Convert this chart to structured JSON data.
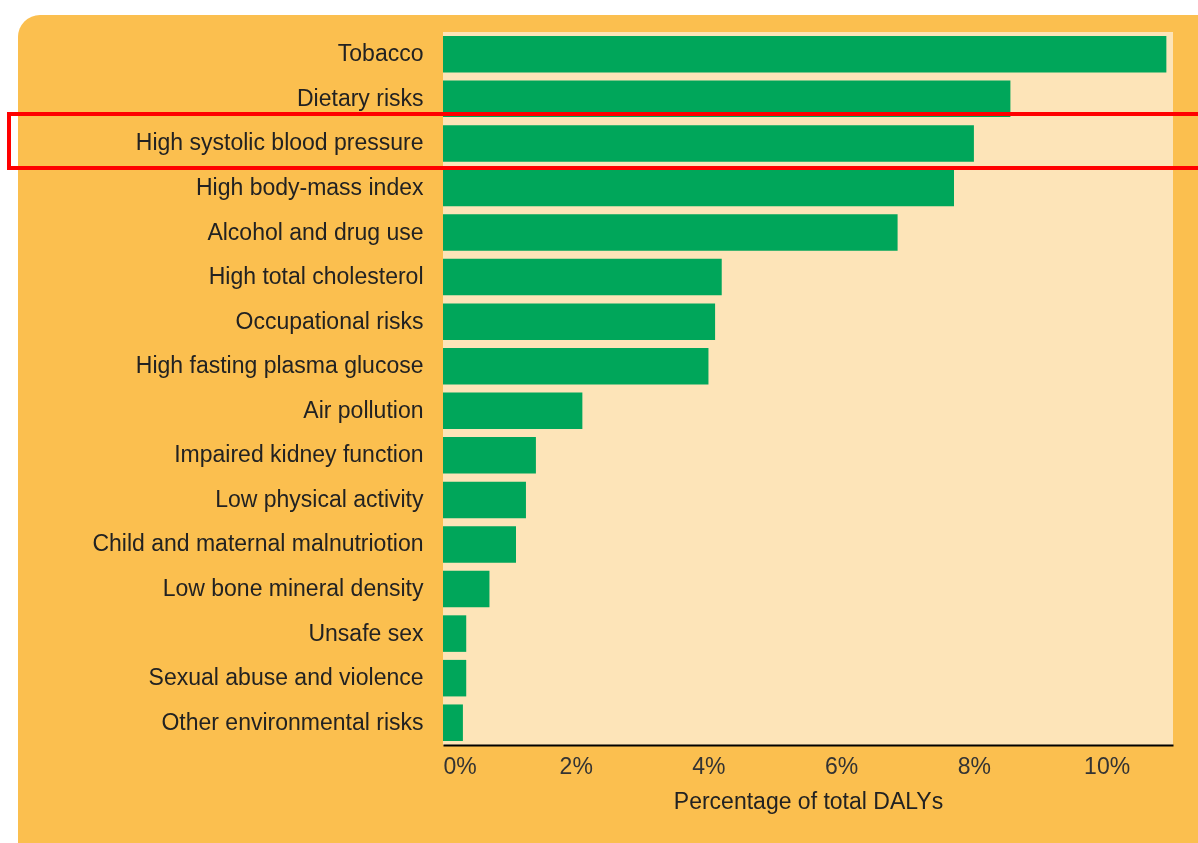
{
  "chart_data": {
    "type": "bar",
    "orientation": "horizontal",
    "categories": [
      "Tobacco",
      "Dietary risks",
      "High systolic blood pressure",
      "High body-mass index",
      "Alcohol and drug use",
      "High total cholesterol",
      "Occupational risks",
      "High fasting plasma glucose",
      "Air pollution",
      "Impaired kidney function",
      "Low physical activity",
      "Child and maternal malnutriotion",
      "Low bone mineral density",
      "Unsafe sex",
      "Sexual abuse and violence",
      "Other environmental risks"
    ],
    "values": [
      10.9,
      8.55,
      8.0,
      7.7,
      6.85,
      4.2,
      4.1,
      4.0,
      2.1,
      1.4,
      1.25,
      1.1,
      0.7,
      0.35,
      0.35,
      0.3
    ],
    "color": "#00a65a",
    "xlabel": "Percentage of total DALYs",
    "xlim": [
      0,
      11
    ],
    "xticks": [
      {
        "value": 0,
        "label": "0%"
      },
      {
        "value": 2,
        "label": "2%"
      },
      {
        "value": 4,
        "label": "4%"
      },
      {
        "value": 6,
        "label": "6%"
      },
      {
        "value": 8,
        "label": "8%"
      },
      {
        "value": 10,
        "label": "10%"
      }
    ],
    "grid": false
  }
}
